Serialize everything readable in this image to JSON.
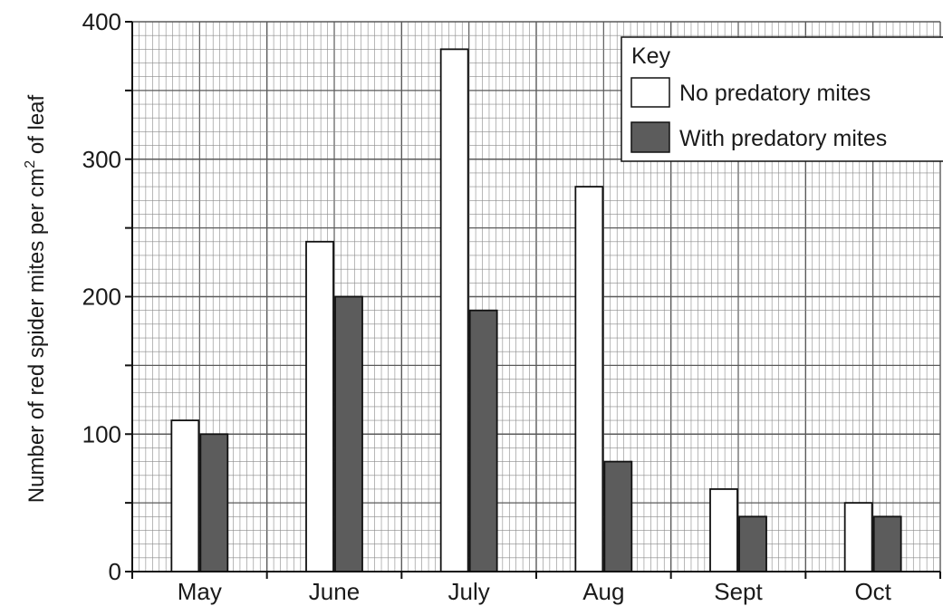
{
  "chart_data": {
    "type": "bar",
    "categories": [
      "May",
      "June",
      "July",
      "Aug",
      "Sept",
      "Oct"
    ],
    "series": [
      {
        "name": "No predatory mites",
        "values": [
          110,
          240,
          380,
          280,
          60,
          50
        ]
      },
      {
        "name": "With predatory mites",
        "values": [
          100,
          200,
          190,
          80,
          40,
          40
        ]
      }
    ],
    "yticks": [
      "0",
      "100",
      "200",
      "300",
      "400"
    ],
    "ylim": [
      0,
      400
    ],
    "xlabel": "",
    "ylabel": {
      "prefix": "Number of red spider mites per cm",
      "superscript": "2",
      "suffix": " of leaf"
    },
    "legend": {
      "title": "Key",
      "placement": "top-right"
    },
    "grid": true,
    "colors": {
      "no_predatory": "#ffffff",
      "with_predatory": "#5c5c5c",
      "grid_minor": "#8a8a8a",
      "grid_major": "#5a5a5a",
      "axis": "#111111"
    }
  }
}
